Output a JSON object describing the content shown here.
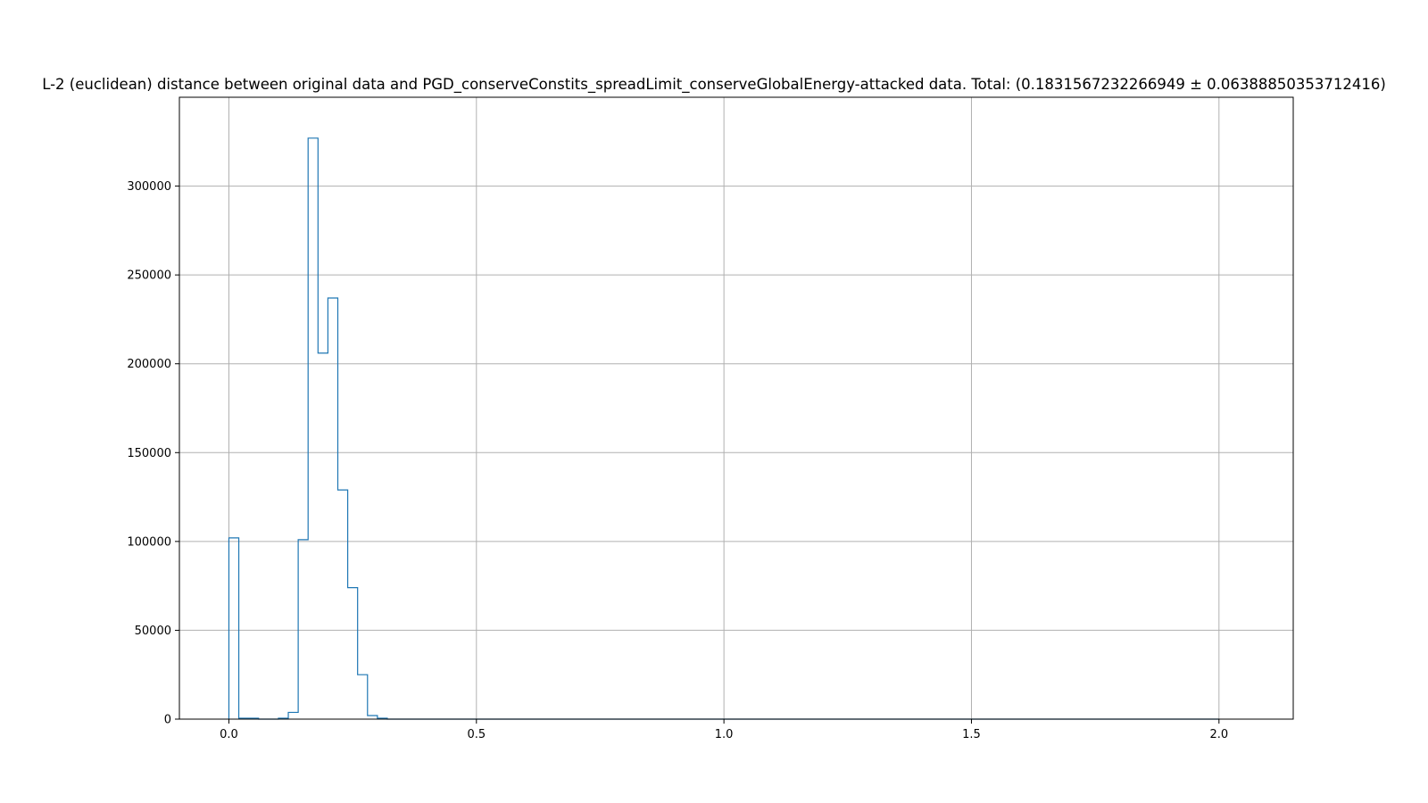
{
  "chart_data": {
    "type": "histogram",
    "title": "L-2 (euclidean) distance between original data and PGD_conserveConstits_spreadLimit_conserveGlobalEnergy-attacked data. Total: (0.1831567232266949 ± 0.06388850353712416)",
    "xlabel": "",
    "ylabel": "",
    "xlim": [
      -0.1,
      2.15
    ],
    "ylim": [
      0,
      350000
    ],
    "grid": true,
    "histtype": "step",
    "color": "#1f77b4",
    "x_ticks": [
      0.0,
      0.5,
      1.0,
      1.5,
      2.0
    ],
    "x_tick_labels": [
      "0.0",
      "0.5",
      "1.0",
      "1.5",
      "2.0"
    ],
    "y_ticks": [
      0,
      50000,
      100000,
      150000,
      200000,
      250000,
      300000
    ],
    "y_tick_labels": [
      "0",
      "50000",
      "100000",
      "150000",
      "200000",
      "250000",
      "300000"
    ],
    "bin_width": 0.02,
    "bin_start": 0.0,
    "bin_end": 2.0,
    "bins": [
      {
        "x0": 0.0,
        "x1": 0.02,
        "count": 102000
      },
      {
        "x0": 0.02,
        "x1": 0.04,
        "count": 500
      },
      {
        "x0": 0.04,
        "x1": 0.06,
        "count": 500
      },
      {
        "x0": 0.06,
        "x1": 0.08,
        "count": 0
      },
      {
        "x0": 0.08,
        "x1": 0.1,
        "count": 0
      },
      {
        "x0": 0.1,
        "x1": 0.12,
        "count": 500
      },
      {
        "x0": 0.12,
        "x1": 0.14,
        "count": 3800
      },
      {
        "x0": 0.14,
        "x1": 0.16,
        "count": 101000
      },
      {
        "x0": 0.16,
        "x1": 0.18,
        "count": 327000
      },
      {
        "x0": 0.18,
        "x1": 0.2,
        "count": 206000
      },
      {
        "x0": 0.2,
        "x1": 0.22,
        "count": 237000
      },
      {
        "x0": 0.22,
        "x1": 0.24,
        "count": 129000
      },
      {
        "x0": 0.24,
        "x1": 0.26,
        "count": 74000
      },
      {
        "x0": 0.26,
        "x1": 0.28,
        "count": 25000
      },
      {
        "x0": 0.28,
        "x1": 0.3,
        "count": 2000
      },
      {
        "x0": 0.3,
        "x1": 0.32,
        "count": 500
      }
    ]
  }
}
